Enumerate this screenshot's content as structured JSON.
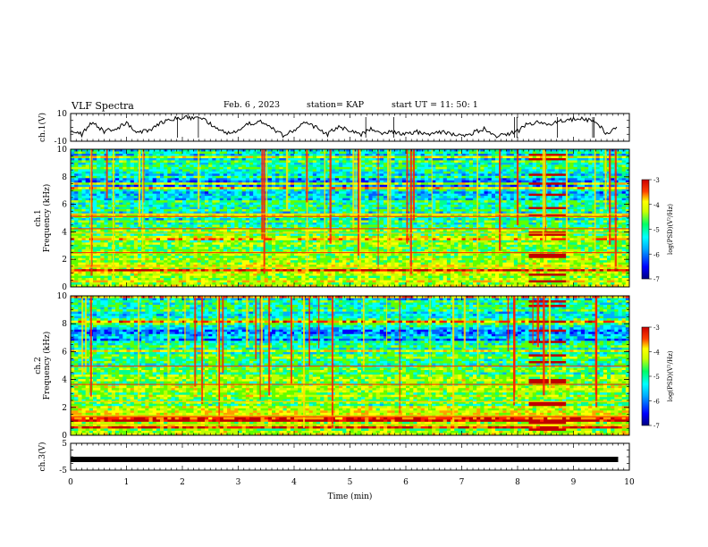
{
  "header": {
    "title": "VLF Spectra",
    "date": "Feb. 6 , 2023",
    "station": "station= KAP",
    "start": "start UT = 11: 50: 1"
  },
  "colors": {
    "spectrum_scale": [
      "#000080",
      "#0000ff",
      "#0080ff",
      "#00ffff",
      "#00ff80",
      "#80ff00",
      "#ffff00",
      "#ff8000",
      "#ff0000",
      "#800000"
    ]
  },
  "chart_data": [
    {
      "id": "ch1-waveform",
      "type": "line",
      "ylabel": "ch.1(V)",
      "ylim": [
        -10,
        10
      ],
      "yticks": [
        {
          "v": 10,
          "label": "10"
        },
        {
          "v": -10,
          "label": "-10"
        }
      ],
      "xlim": [
        0,
        10
      ],
      "x": [
        0,
        0.2,
        0.4,
        0.6,
        0.8,
        1.0,
        1.2,
        1.4,
        1.6,
        1.8,
        2.0,
        2.2,
        2.4,
        2.6,
        2.8,
        3.0,
        3.2,
        3.4,
        3.6,
        3.8,
        4.0,
        4.2,
        4.4,
        4.6,
        4.8,
        5.0,
        5.2,
        5.4,
        5.6,
        5.8,
        6.0,
        6.2,
        6.4,
        6.6,
        6.8,
        7.0,
        7.2,
        7.4,
        7.6,
        7.8,
        8.0,
        8.2,
        8.4,
        8.6,
        8.8,
        9.0,
        9.2,
        9.4,
        9.6,
        9.8
      ],
      "values": [
        -2,
        -5,
        4,
        -3,
        -1,
        3,
        -4,
        -2,
        3,
        6,
        7,
        7,
        5,
        0,
        -4,
        -2,
        3,
        4,
        -1,
        -6,
        -2,
        3,
        0,
        -5,
        1,
        -3,
        -5,
        -1,
        -4,
        -3,
        -5,
        -3,
        -6,
        -3,
        -5,
        -6,
        -4,
        -1,
        -6,
        -5,
        -3,
        3,
        4,
        2,
        5,
        6,
        6,
        4,
        -5,
        1
      ]
    },
    {
      "id": "ch1-spectrogram",
      "type": "heatmap",
      "ylabel": "ch.1\nFrequency (kHz)",
      "ylim": [
        0,
        10
      ],
      "yticks": [
        0,
        2,
        4,
        6,
        8,
        10
      ],
      "xlim": [
        0,
        10
      ],
      "colorbar": {
        "label": "log(PSD)(V²/Hz)",
        "range": [
          -7,
          -3
        ],
        "ticks": [
          -3,
          -4,
          -5,
          -6,
          -7
        ]
      }
    },
    {
      "id": "ch2-spectrogram",
      "type": "heatmap",
      "ylabel": "ch.2\nFrequency (kHz)",
      "ylim": [
        0,
        10
      ],
      "yticks": [
        0,
        2,
        4,
        6,
        8,
        10
      ],
      "xlim": [
        0,
        10
      ],
      "colorbar": {
        "label": "log(PSD)(V²/Hz)",
        "range": [
          -7,
          -3
        ],
        "ticks": [
          -3,
          -4,
          -5,
          -6,
          -7
        ]
      }
    },
    {
      "id": "ch3-waveform",
      "type": "line",
      "ylabel": "ch.3(V)",
      "ylim": [
        -5,
        5
      ],
      "yticks": [
        {
          "v": 5,
          "label": "5"
        },
        {
          "v": -5,
          "label": "-5"
        }
      ],
      "xlim": [
        0,
        10
      ],
      "xticks": [
        0,
        1,
        2,
        3,
        4,
        5,
        6,
        7,
        8,
        9,
        10
      ],
      "xlabel": "Time (min)",
      "x": [
        0,
        9.8
      ],
      "values": [
        -1,
        -1
      ]
    }
  ]
}
